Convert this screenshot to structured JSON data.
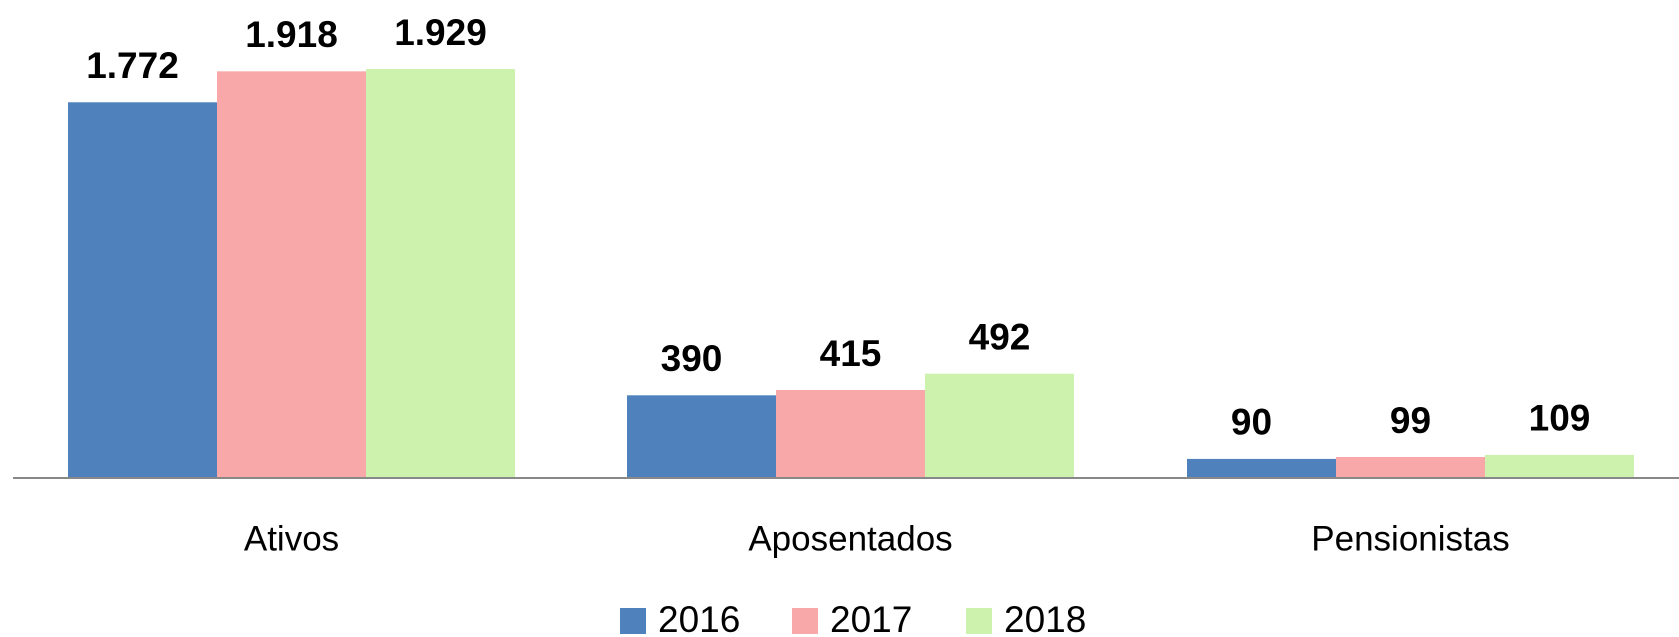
{
  "chart_data": {
    "type": "bar",
    "categories": [
      "Ativos",
      "Aposentados",
      "Pensionistas"
    ],
    "series": [
      {
        "name": "2016",
        "color": "#4f81bd",
        "values": [
          1772,
          390,
          90
        ],
        "value_labels": [
          "1.772",
          "390",
          "90"
        ]
      },
      {
        "name": "2017",
        "color": "#f8a8a8",
        "values": [
          1918,
          415,
          99
        ],
        "value_labels": [
          "1.918",
          "415",
          "99"
        ]
      },
      {
        "name": "2018",
        "color": "#ccf2ae",
        "values": [
          1929,
          492,
          109
        ],
        "value_labels": [
          "1.929",
          "492",
          "109"
        ]
      }
    ],
    "legend": "bottom"
  }
}
